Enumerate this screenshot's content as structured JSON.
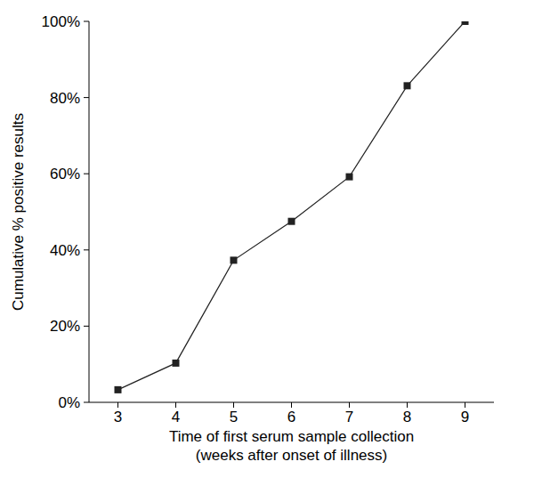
{
  "chart_data": {
    "type": "line",
    "x_label": "Time of first serum sample collection\n(weeks after onset of illness)",
    "y_label": "Cumulative % positive results",
    "x": [
      3,
      4,
      5,
      6,
      7,
      8,
      9
    ],
    "values": [
      3.3,
      10.3,
      37.3,
      47.5,
      59.2,
      83.1,
      100
    ],
    "color": "#222222",
    "marker": "square",
    "line_style": "solid",
    "xlim": [
      2.5,
      9.5
    ],
    "xticks": [
      3,
      4,
      5,
      6,
      7,
      8,
      9
    ],
    "ylim": [
      0,
      100
    ],
    "yticks": [
      {
        "value": 0,
        "label": "0%"
      },
      {
        "value": 20,
        "label": "20%"
      },
      {
        "value": 40,
        "label": "40%"
      },
      {
        "value": 60,
        "label": "60%"
      },
      {
        "value": 80,
        "label": "80%"
      },
      {
        "value": 100,
        "label": "100%"
      }
    ],
    "grid": false
  }
}
